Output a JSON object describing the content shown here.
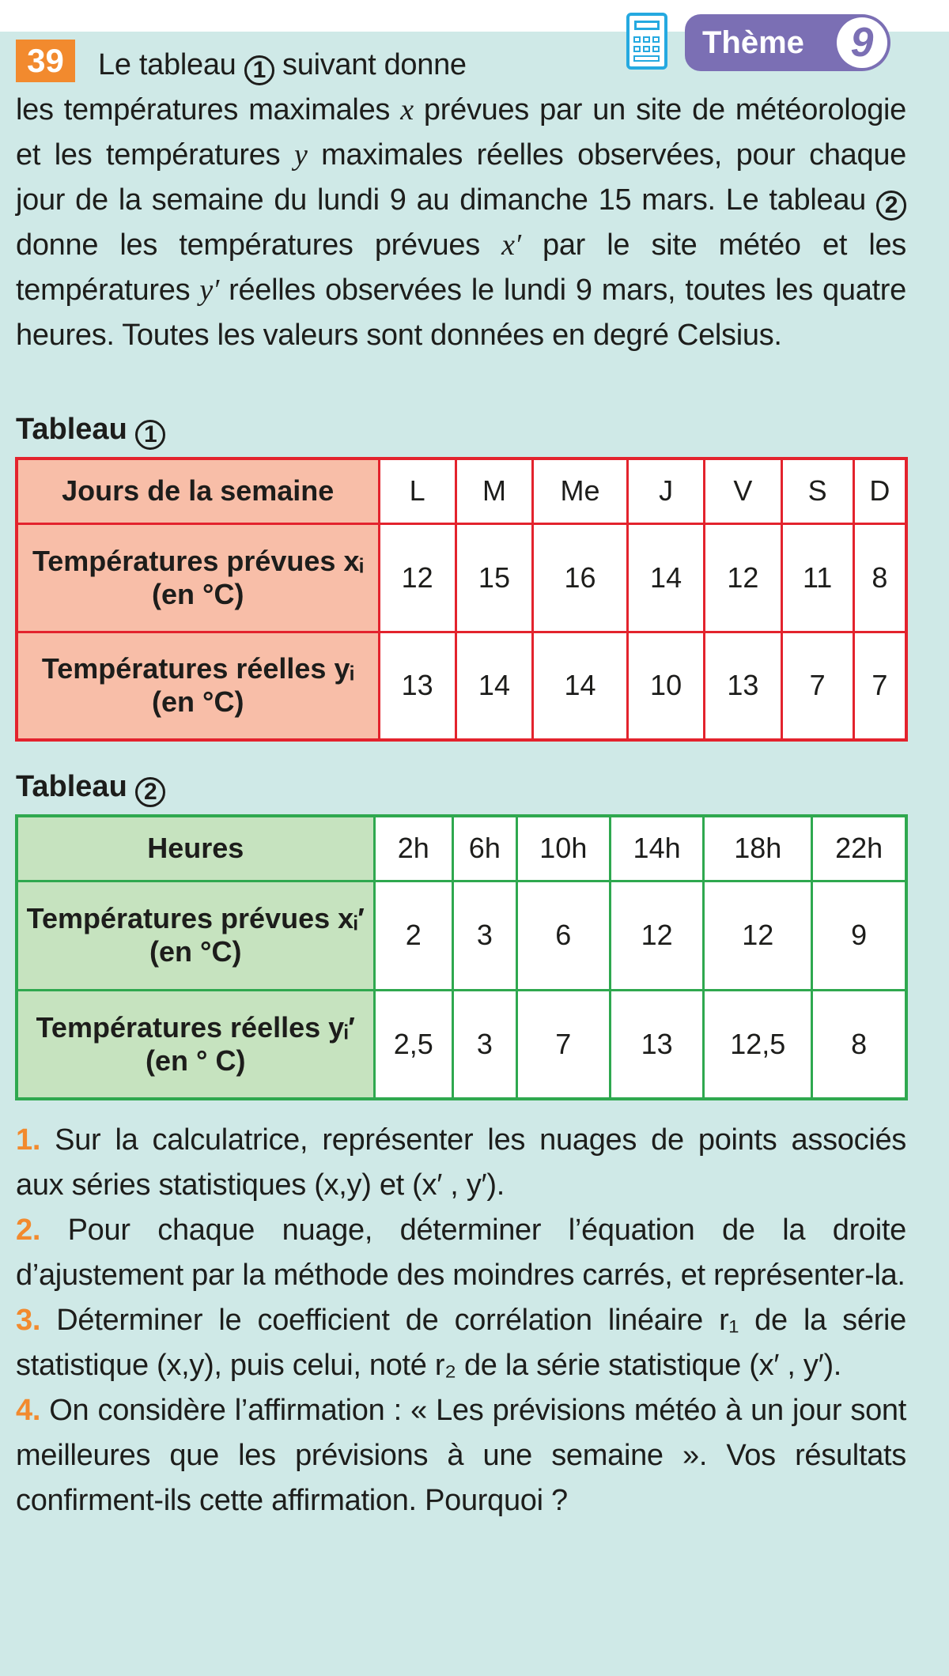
{
  "header": {
    "exercise_number": "39",
    "theme_label": "Thème",
    "theme_number": "9",
    "calculator_icon": "calculator-icon"
  },
  "intro": {
    "first_line_a": "Le tableau",
    "first_line_circle": "1",
    "first_line_b": "suivant donne",
    "p1": "les températures maximales ",
    "x": "x",
    "p2": " prévues par un site de météorologie et les températures ",
    "y": "y",
    "p3": " maximales réelles observées, pour chaque jour de la semaine du lundi 9 au dimanche 15 mars. Le tableau ",
    "circle2": "2",
    "p4": " donne les températures prévues ",
    "xp": "x′",
    "p5": " par le site météo et les températures ",
    "yp": "y′",
    "p6": " réelles observées le lundi 9 mars, toutes les quatre heures. Toutes les valeurs sont données en degré Celsius."
  },
  "table1": {
    "title": "Tableau",
    "circle": "1",
    "colors": {
      "border": "#e3232d",
      "header": "#f8bea8"
    },
    "row_headers": [
      "Jours de la semaine",
      "Températures prévues xᵢ (en °C)",
      "Températures réelles yᵢ (en °C)"
    ],
    "days": [
      "L",
      "M",
      "Me",
      "J",
      "V",
      "S",
      "D"
    ],
    "forecast": [
      "12",
      "15",
      "16",
      "14",
      "12",
      "11",
      "8"
    ],
    "actual": [
      "13",
      "14",
      "14",
      "10",
      "13",
      "7",
      "7"
    ]
  },
  "table2": {
    "title": "Tableau",
    "circle": "2",
    "colors": {
      "border": "#2fa84f",
      "header": "#c6e3bf"
    },
    "row_headers": [
      "Heures",
      "Températures prévues xᵢ′ (en °C)",
      "Températures réelles yᵢ′ (en ° C)"
    ],
    "hours": [
      "2h",
      "6h",
      "10h",
      "14h",
      "18h",
      "22h"
    ],
    "forecast": [
      "2",
      "3",
      "6",
      "12",
      "12",
      "9"
    ],
    "actual": [
      "2,5",
      "3",
      "7",
      "13",
      "12,5",
      "8"
    ]
  },
  "questions": [
    {
      "num": "1.",
      "text": " Sur la calculatrice, représenter les nuages de points associés aux séries statistiques (x,y) et (x′ , y′)."
    },
    {
      "num": "2.",
      "text": " Pour chaque nuage, déterminer l’équation de la droite d’ajustement par la méthode des moindres carrés, et représenter-la."
    },
    {
      "num": "3.",
      "text": " Déterminer le coefficient de corrélation linéaire r₁ de la série statistique (x,y), puis celui, noté r₂ de la série statistique (x′ , y′)."
    },
    {
      "num": "4.",
      "text": " On considère l’affirmation : « Les prévisions météo à un jour sont meilleures que les prévisions à une semaine ». Vos résultats confirment-ils cette affirmation. Pourquoi ?"
    }
  ]
}
